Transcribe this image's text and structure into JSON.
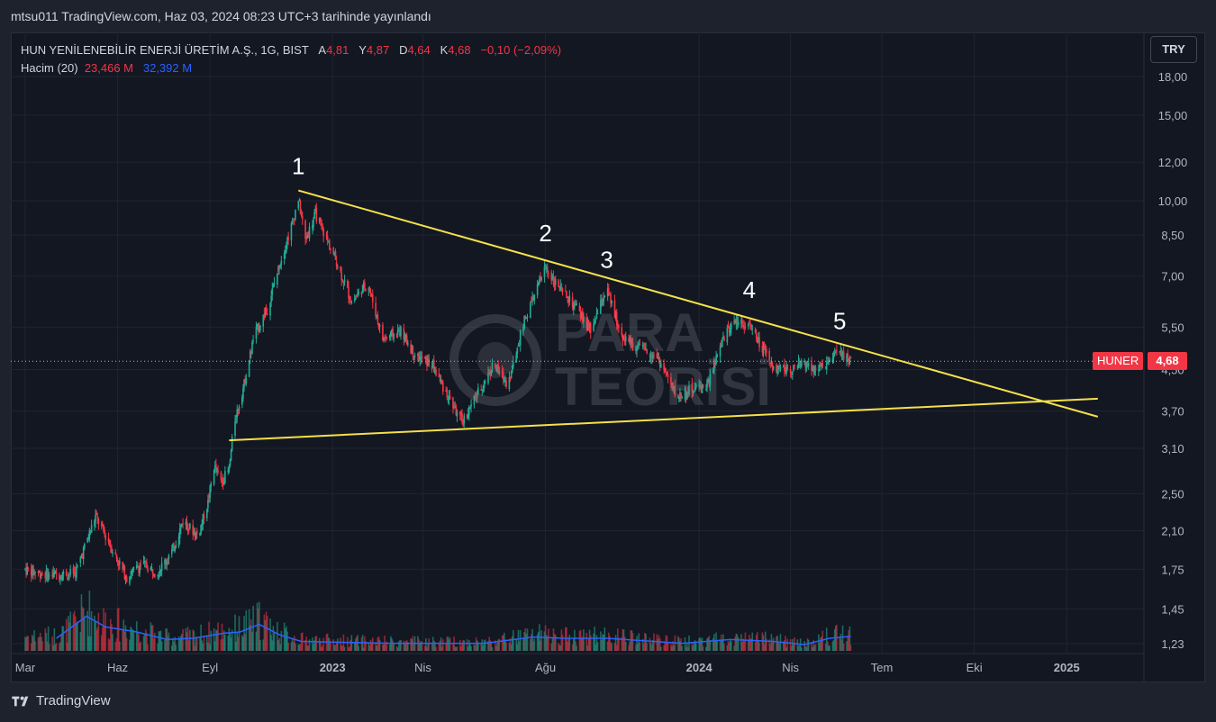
{
  "header": {
    "published_text": "mtsu011 TradingView.com, Haz 03, 2024 08:23 UTC+3 tarihinde yayınlandı"
  },
  "legend": {
    "symbol": "HUN YENİLENEBİLİR ENERJİ ÜRETİM A.Ş., 1G, BIST",
    "open_label": "A",
    "open": "4,81",
    "high_label": "Y",
    "high": "4,87",
    "low_label": "D",
    "low": "4,64",
    "close_label": "K",
    "close": "4,68",
    "change": "−0,10 (−2,09%)",
    "volume_label": "Hacim (20)",
    "volume_value": "23,466 M",
    "volume_ma": "32,392 M"
  },
  "currency_button": "TRY",
  "ticker_tag": "HUNER",
  "last_price": "4,68",
  "watermark": {
    "line1": "PARA",
    "line2": "TEORİSİ"
  },
  "footer": {
    "brand": "TradingView"
  },
  "colors": {
    "up": "#22ab94",
    "down": "#f23645",
    "trendline": "#f5e04a",
    "volume_ma": "#2962ff",
    "background": "#131722"
  },
  "chart_data": {
    "type": "candlestick",
    "x_ticks": [
      "Mar",
      "Haz",
      "Eyl",
      "2023",
      "Nis",
      "Ağu",
      "2024",
      "Nis",
      "Tem",
      "Eki",
      "2025"
    ],
    "y_ticks": [
      "18,00",
      "15,00",
      "12,00",
      "10,00",
      "8,50",
      "7,00",
      "5,50",
      "4,50",
      "3,70",
      "3,10",
      "2,50",
      "2,10",
      "1,75",
      "1,45",
      "1,23"
    ],
    "y_scale": "log",
    "ylim": [
      1.2,
      19
    ],
    "annotations": [
      {
        "label": "1",
        "date": "2022-11-28",
        "price": 10.5
      },
      {
        "label": "2",
        "date": "2023-08-01",
        "price": 7.65
      },
      {
        "label": "3",
        "date": "2023-10-01",
        "price": 6.75
      },
      {
        "label": "4",
        "date": "2024-02-20",
        "price": 5.85
      },
      {
        "label": "5",
        "date": "2024-05-20",
        "price": 5.05
      }
    ],
    "trendlines": [
      {
        "name": "resistance",
        "from": {
          "date": "2022-11-28",
          "price": 10.5
        },
        "to": {
          "date": "2025-02-01",
          "price": 3.6
        }
      },
      {
        "name": "support",
        "from": {
          "date": "2022-09-20",
          "price": 3.22
        },
        "to": {
          "date": "2025-02-01",
          "price": 3.92
        }
      }
    ],
    "last_price": 4.68,
    "series_anchors": [
      [
        "2022-03-01",
        1.75
      ],
      [
        "2022-03-25",
        1.7
      ],
      [
        "2022-04-20",
        1.72
      ],
      [
        "2022-05-10",
        2.25
      ],
      [
        "2022-05-20",
        2.05
      ],
      [
        "2022-06-10",
        1.68
      ],
      [
        "2022-06-25",
        1.8
      ],
      [
        "2022-07-10",
        1.72
      ],
      [
        "2022-07-25",
        1.9
      ],
      [
        "2022-08-05",
        2.2
      ],
      [
        "2022-08-20",
        2.05
      ],
      [
        "2022-08-30",
        2.4
      ],
      [
        "2022-09-05",
        2.85
      ],
      [
        "2022-09-12",
        2.65
      ],
      [
        "2022-09-20",
        2.8
      ],
      [
        "2022-09-25",
        3.5
      ],
      [
        "2022-10-05",
        4.2
      ],
      [
        "2022-10-15",
        5.3
      ],
      [
        "2022-10-28",
        6.0
      ],
      [
        "2022-11-10",
        7.5
      ],
      [
        "2022-11-22",
        9.0
      ],
      [
        "2022-11-28",
        10.1
      ],
      [
        "2022-12-05",
        8.3
      ],
      [
        "2022-12-15",
        9.4
      ],
      [
        "2023-01-05",
        7.5
      ],
      [
        "2023-01-20",
        6.2
      ],
      [
        "2023-02-05",
        6.8
      ],
      [
        "2023-02-20",
        5.2
      ],
      [
        "2023-03-10",
        5.4
      ],
      [
        "2023-03-25",
        4.8
      ],
      [
        "2023-04-10",
        4.6
      ],
      [
        "2023-04-25",
        4.0
      ],
      [
        "2023-05-10",
        3.5
      ],
      [
        "2023-05-25",
        4.0
      ],
      [
        "2023-06-10",
        4.6
      ],
      [
        "2023-06-25",
        4.2
      ],
      [
        "2023-07-10",
        5.6
      ],
      [
        "2023-08-01",
        7.3
      ],
      [
        "2023-08-15",
        6.6
      ],
      [
        "2023-09-01",
        6.0
      ],
      [
        "2023-09-15",
        5.4
      ],
      [
        "2023-10-01",
        6.6
      ],
      [
        "2023-10-15",
        5.3
      ],
      [
        "2023-11-01",
        5.0
      ],
      [
        "2023-11-20",
        4.8
      ],
      [
        "2023-12-10",
        3.95
      ],
      [
        "2023-12-25",
        4.1
      ],
      [
        "2024-01-10",
        4.2
      ],
      [
        "2024-01-25",
        5.2
      ],
      [
        "2024-02-05",
        5.7
      ],
      [
        "2024-02-20",
        5.55
      ],
      [
        "2024-03-05",
        4.9
      ],
      [
        "2024-03-15",
        4.55
      ],
      [
        "2024-04-01",
        4.5
      ],
      [
        "2024-04-15",
        4.65
      ],
      [
        "2024-04-30",
        4.5
      ],
      [
        "2024-05-10",
        4.7
      ],
      [
        "2024-05-20",
        4.9
      ],
      [
        "2024-05-31",
        4.68
      ]
    ],
    "volume_ma_anchors": [
      [
        "2022-04-01",
        0.2
      ],
      [
        "2022-05-01",
        0.55
      ],
      [
        "2022-05-20",
        0.38
      ],
      [
        "2022-06-20",
        0.3
      ],
      [
        "2022-07-20",
        0.18
      ],
      [
        "2022-08-15",
        0.2
      ],
      [
        "2022-09-15",
        0.28
      ],
      [
        "2022-10-01",
        0.3
      ],
      [
        "2022-10-20",
        0.42
      ],
      [
        "2022-11-10",
        0.25
      ],
      [
        "2022-12-01",
        0.15
      ],
      [
        "2023-03-01",
        0.12
      ],
      [
        "2023-06-01",
        0.12
      ],
      [
        "2023-07-20",
        0.22
      ],
      [
        "2023-08-20",
        0.2
      ],
      [
        "2023-10-01",
        0.2
      ],
      [
        "2023-12-15",
        0.12
      ],
      [
        "2024-02-01",
        0.18
      ],
      [
        "2024-03-15",
        0.15
      ],
      [
        "2024-04-15",
        0.1
      ],
      [
        "2024-05-10",
        0.2
      ],
      [
        "2024-05-31",
        0.23
      ]
    ]
  }
}
